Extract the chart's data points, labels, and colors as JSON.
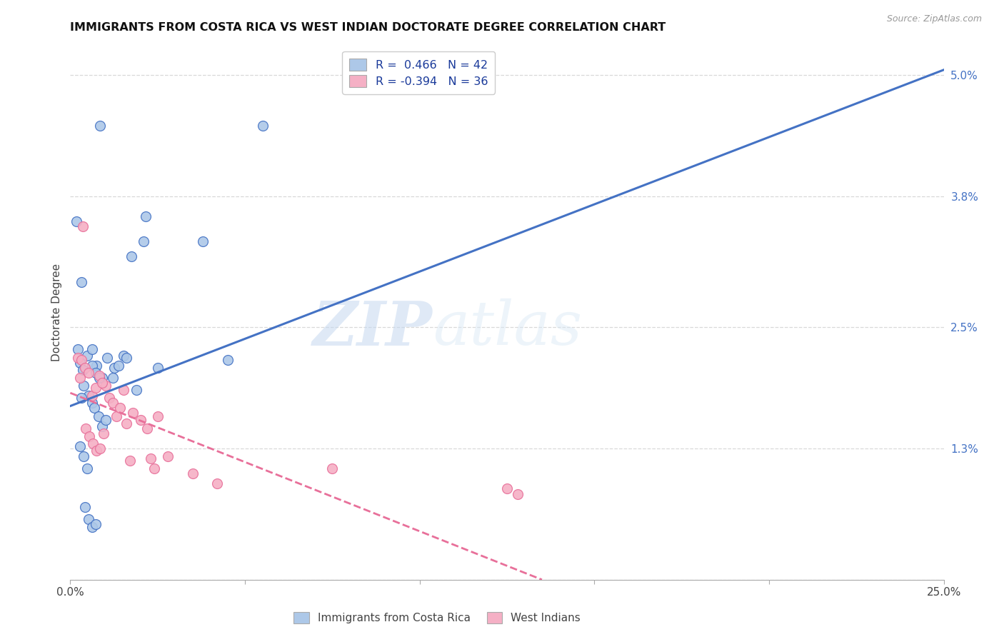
{
  "title": "IMMIGRANTS FROM COSTA RICA VS WEST INDIAN DOCTORATE DEGREE CORRELATION CHART",
  "source": "Source: ZipAtlas.com",
  "ylabel": "Doctorate Degree",
  "x_min": 0.0,
  "x_max": 25.0,
  "y_min": 0.0,
  "y_max": 5.3,
  "x_ticks": [
    0.0,
    5.0,
    10.0,
    15.0,
    20.0,
    25.0
  ],
  "y_ticks_right": [
    0.0,
    1.3,
    2.5,
    3.8,
    5.0
  ],
  "y_tick_labels_right": [
    "",
    "1.3%",
    "2.5%",
    "3.8%",
    "5.0%"
  ],
  "legend_label1": "Immigrants from Costa Rica",
  "legend_label2": "West Indians",
  "r1": "0.466",
  "n1": 42,
  "r2": "-0.394",
  "n2": 36,
  "color1": "#adc8e8",
  "color2": "#f5b0c5",
  "line_color1": "#4472c4",
  "line_color2": "#e8709a",
  "watermark_zip": "ZIP",
  "watermark_atlas": "atlas",
  "blue_line_x0": 0.0,
  "blue_line_y0": 1.72,
  "blue_line_x1": 25.0,
  "blue_line_y1": 5.05,
  "pink_line_x0": 0.0,
  "pink_line_y0": 1.85,
  "pink_line_x1": 13.5,
  "pink_line_y1": 0.0,
  "scatter1_x": [
    0.18,
    0.85,
    1.75,
    2.15,
    0.32,
    0.28,
    0.48,
    0.62,
    0.75,
    0.92,
    1.05,
    1.25,
    1.38,
    1.52,
    0.38,
    0.52,
    0.62,
    0.68,
    0.8,
    0.92,
    1.02,
    0.28,
    0.38,
    0.48,
    2.1,
    0.62,
    0.72,
    0.82,
    1.6,
    2.5,
    1.22,
    0.42,
    0.52,
    5.5,
    0.32,
    3.8,
    0.62,
    0.72,
    4.5,
    1.9,
    0.35,
    0.22
  ],
  "scatter1_y": [
    3.55,
    4.5,
    3.2,
    3.6,
    2.95,
    2.15,
    2.22,
    2.28,
    2.12,
    2.0,
    2.2,
    2.1,
    2.12,
    2.22,
    1.92,
    1.82,
    1.75,
    1.7,
    1.62,
    1.52,
    1.58,
    1.32,
    1.22,
    1.1,
    3.35,
    2.12,
    2.05,
    2.0,
    2.2,
    2.1,
    2.0,
    0.72,
    0.6,
    4.5,
    1.8,
    3.35,
    0.52,
    0.55,
    2.18,
    1.88,
    2.08,
    2.28
  ],
  "scatter2_x": [
    0.22,
    0.82,
    1.02,
    1.52,
    0.32,
    0.42,
    0.52,
    0.62,
    0.72,
    0.92,
    1.12,
    1.22,
    1.32,
    1.42,
    2.02,
    0.35,
    0.45,
    0.55,
    0.65,
    0.75,
    0.85,
    2.5,
    2.8,
    7.5,
    12.5,
    12.8,
    0.28,
    1.8,
    2.2,
    3.5,
    4.2,
    2.3,
    2.4,
    1.6,
    1.7,
    0.95
  ],
  "scatter2_y": [
    2.2,
    2.02,
    1.92,
    1.88,
    2.18,
    2.1,
    2.05,
    1.82,
    1.9,
    1.95,
    1.8,
    1.75,
    1.62,
    1.7,
    1.58,
    3.5,
    1.5,
    1.42,
    1.35,
    1.28,
    1.3,
    1.62,
    1.22,
    1.1,
    0.9,
    0.85,
    2.0,
    1.65,
    1.5,
    1.05,
    0.95,
    1.2,
    1.1,
    1.55,
    1.18,
    1.45
  ]
}
